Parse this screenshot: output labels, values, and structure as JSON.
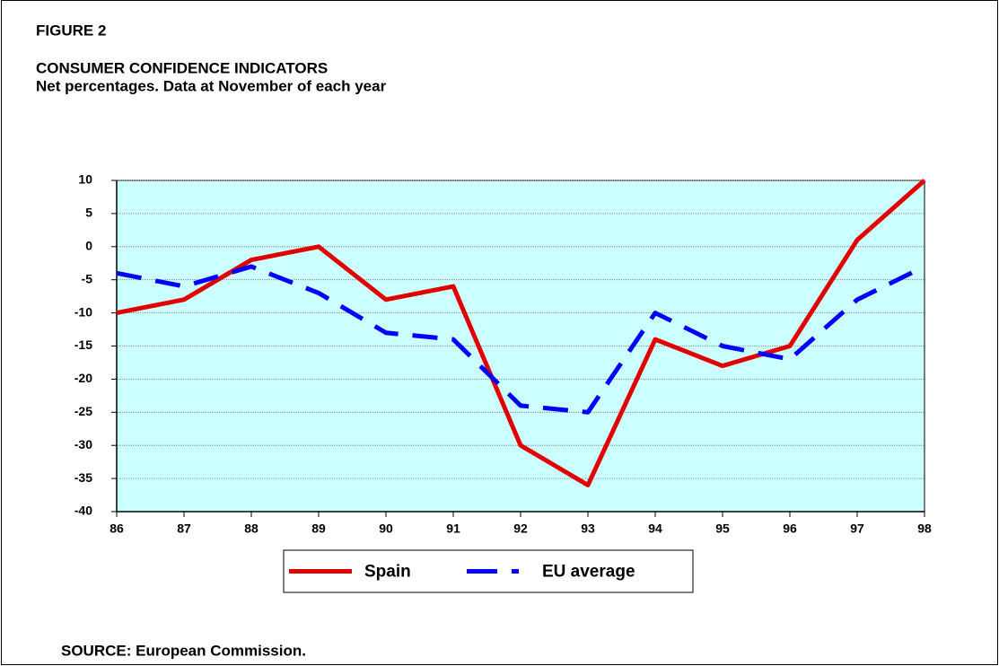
{
  "chart_data": {
    "type": "line",
    "figure_label": "FIGURE 2",
    "title": "CONSUMER CONFIDENCE INDICATORS",
    "subtitle": "Net percentages. Data at November of each year",
    "source": "SOURCE: European Commission.",
    "categories": [
      "86",
      "87",
      "88",
      "89",
      "90",
      "91",
      "92",
      "93",
      "94",
      "95",
      "96",
      "97",
      "98"
    ],
    "series": [
      {
        "name": "Spain",
        "color": "#e00000",
        "line_style": "solid",
        "values": [
          -10,
          -8,
          -2,
          0,
          -8,
          -6,
          -30,
          -36,
          -14,
          -18,
          -15,
          1,
          10
        ]
      },
      {
        "name": "EU average",
        "color": "#0000ff",
        "line_style": "dashed",
        "values": [
          -4,
          -6,
          -3,
          -7,
          -13,
          -14,
          -24,
          -25,
          -10,
          -15,
          -17,
          -8,
          -3
        ]
      }
    ],
    "ylim": [
      -40,
      10
    ],
    "yticks": [
      10,
      5,
      0,
      -5,
      -10,
      -15,
      -20,
      -25,
      -30,
      -35,
      -40
    ],
    "grid": true,
    "plot_background": "#ccffff",
    "legend_position": "bottom"
  }
}
